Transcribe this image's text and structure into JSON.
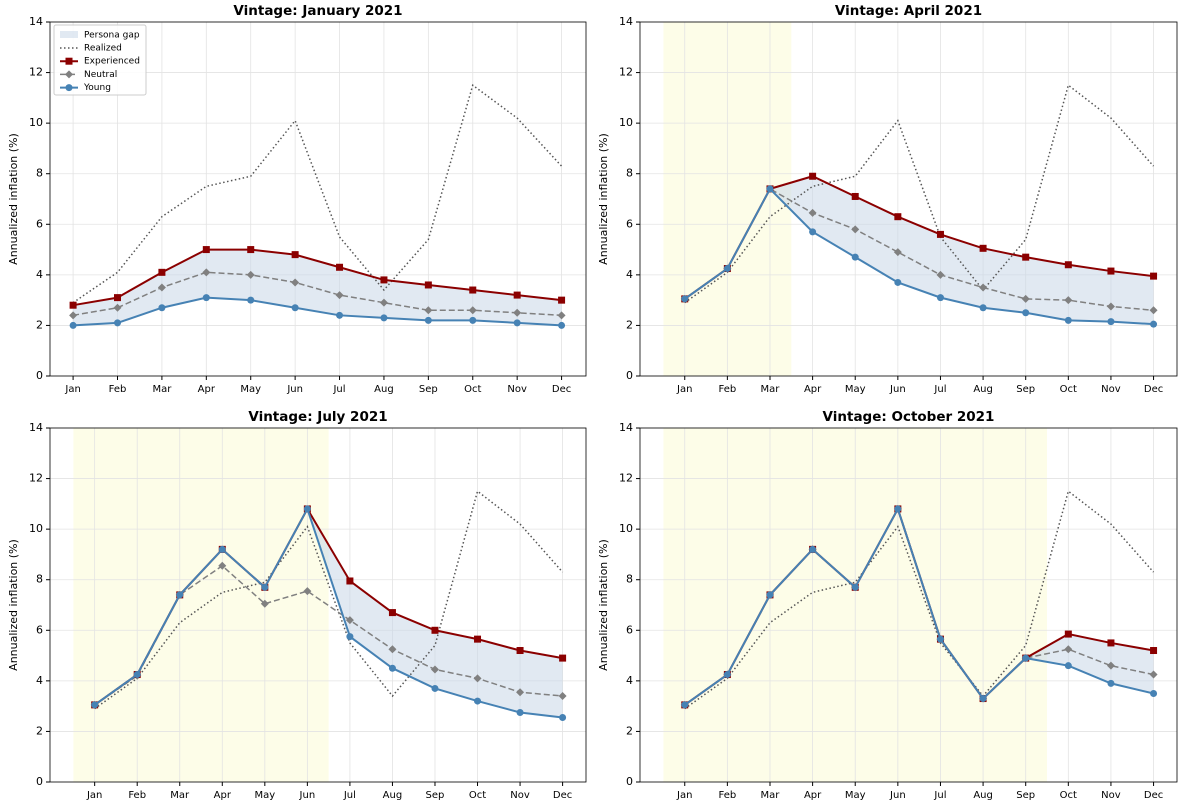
{
  "chart_data": [
    {
      "type": "line",
      "title": "Vintage: January 2021",
      "ylabel": "Annualized inflation (%)",
      "categories": [
        "Jan",
        "Feb",
        "Mar",
        "Apr",
        "May",
        "Jun",
        "Jul",
        "Aug",
        "Sep",
        "Oct",
        "Nov",
        "Dec"
      ],
      "ylim": [
        0,
        14
      ],
      "yticks": [
        0,
        2,
        4,
        6,
        8,
        10,
        12,
        14
      ],
      "grid": true,
      "legend": "upper left",
      "gap": {
        "name": "Persona gap",
        "color": "#c9d7e8"
      },
      "series": [
        {
          "name": "Realized",
          "color": "#555555",
          "style": "dotted",
          "marker": "none",
          "values": [
            2.9,
            4.1,
            6.3,
            7.5,
            7.9,
            10.1,
            5.5,
            3.4,
            5.4,
            11.5,
            10.2,
            8.3
          ]
        },
        {
          "name": "Experienced",
          "color": "#8b0000",
          "style": "solid",
          "marker": "square",
          "values": [
            2.8,
            3.1,
            4.1,
            5.0,
            5.0,
            4.8,
            4.3,
            3.8,
            3.6,
            3.4,
            3.2,
            3.0
          ]
        },
        {
          "name": "Neutral",
          "color": "#808080",
          "style": "dashed",
          "marker": "diamond",
          "values": [
            2.4,
            2.7,
            3.5,
            4.1,
            4.0,
            3.7,
            3.2,
            2.9,
            2.6,
            2.6,
            2.5,
            2.4
          ]
        },
        {
          "name": "Young",
          "color": "#4682b4",
          "style": "solid",
          "marker": "circle",
          "values": [
            2.0,
            2.1,
            2.7,
            3.1,
            3.0,
            2.7,
            2.4,
            2.3,
            2.2,
            2.2,
            2.1,
            2.0
          ]
        }
      ]
    },
    {
      "type": "line",
      "title": "Vintage: April 2021",
      "ylabel": "Annualized inflation (%)",
      "categories": [
        "Jan",
        "Feb",
        "Mar",
        "Apr",
        "May",
        "Jun",
        "Jul",
        "Aug",
        "Sep",
        "Oct",
        "Nov",
        "Dec"
      ],
      "ylim": [
        0,
        14
      ],
      "yticks": [
        0,
        2,
        4,
        6,
        8,
        10,
        12,
        14
      ],
      "grid": true,
      "shaded_through": 2,
      "series": [
        {
          "name": "Realized",
          "color": "#555555",
          "style": "dotted",
          "marker": "none",
          "values": [
            2.9,
            4.1,
            6.3,
            7.5,
            7.9,
            10.1,
            5.5,
            3.4,
            5.4,
            11.5,
            10.2,
            8.3
          ]
        },
        {
          "name": "Experienced",
          "color": "#8b0000",
          "style": "solid",
          "marker": "square",
          "values": [
            3.05,
            4.25,
            7.4,
            7.9,
            7.1,
            6.3,
            5.6,
            5.05,
            4.7,
            4.4,
            4.15,
            3.95
          ]
        },
        {
          "name": "Neutral",
          "color": "#808080",
          "style": "dashed",
          "marker": "diamond",
          "values": [
            3.05,
            4.25,
            7.4,
            6.45,
            5.8,
            4.9,
            4.0,
            3.5,
            3.05,
            3.0,
            2.75,
            2.6
          ]
        },
        {
          "name": "Young",
          "color": "#4682b4",
          "style": "solid",
          "marker": "circle",
          "values": [
            3.05,
            4.25,
            7.4,
            5.7,
            4.7,
            3.7,
            3.1,
            2.7,
            2.5,
            2.2,
            2.15,
            2.05
          ]
        }
      ]
    },
    {
      "type": "line",
      "title": "Vintage: July 2021",
      "ylabel": "Annualized inflation (%)",
      "categories": [
        "Jan",
        "Feb",
        "Mar",
        "Apr",
        "May",
        "Jun",
        "Jul",
        "Aug",
        "Sep",
        "Oct",
        "Nov",
        "Dec"
      ],
      "ylim": [
        0,
        14
      ],
      "yticks": [
        0,
        2,
        4,
        6,
        8,
        10,
        12,
        14
      ],
      "grid": true,
      "shaded_through": 5,
      "series": [
        {
          "name": "Realized",
          "color": "#555555",
          "style": "dotted",
          "marker": "none",
          "values": [
            2.9,
            4.1,
            6.3,
            7.5,
            7.9,
            10.1,
            5.5,
            3.4,
            5.4,
            11.5,
            10.2,
            8.3
          ]
        },
        {
          "name": "Experienced",
          "color": "#8b0000",
          "style": "solid",
          "marker": "square",
          "values": [
            3.05,
            4.25,
            7.4,
            9.2,
            7.7,
            10.8,
            7.95,
            6.7,
            6.0,
            5.65,
            5.2,
            4.9
          ]
        },
        {
          "name": "Neutral",
          "color": "#808080",
          "style": "dashed",
          "marker": "diamond",
          "values": [
            3.05,
            4.2,
            7.4,
            8.55,
            7.05,
            7.55,
            6.4,
            5.25,
            4.45,
            4.1,
            3.55,
            3.4
          ]
        },
        {
          "name": "Young",
          "color": "#4682b4",
          "style": "solid",
          "marker": "circle",
          "values": [
            3.05,
            4.25,
            7.4,
            9.2,
            7.7,
            10.8,
            5.75,
            4.5,
            3.7,
            3.2,
            2.75,
            2.55
          ]
        }
      ]
    },
    {
      "type": "line",
      "title": "Vintage: October 2021",
      "ylabel": "Annualized inflation (%)",
      "categories": [
        "Jan",
        "Feb",
        "Mar",
        "Apr",
        "May",
        "Jun",
        "Jul",
        "Aug",
        "Sep",
        "Oct",
        "Nov",
        "Dec"
      ],
      "ylim": [
        0,
        14
      ],
      "yticks": [
        0,
        2,
        4,
        6,
        8,
        10,
        12,
        14
      ],
      "grid": true,
      "shaded_through": 8,
      "series": [
        {
          "name": "Realized",
          "color": "#555555",
          "style": "dotted",
          "marker": "none",
          "values": [
            2.9,
            4.1,
            6.3,
            7.5,
            7.9,
            10.1,
            5.5,
            3.4,
            5.4,
            11.5,
            10.2,
            8.3
          ]
        },
        {
          "name": "Experienced",
          "color": "#8b0000",
          "style": "solid",
          "marker": "square",
          "values": [
            3.05,
            4.25,
            7.4,
            9.2,
            7.7,
            10.8,
            5.65,
            3.3,
            4.9,
            5.85,
            5.5,
            5.2
          ]
        },
        {
          "name": "Neutral",
          "color": "#808080",
          "style": "dashed",
          "marker": "diamond",
          "values": [
            3.05,
            4.25,
            7.4,
            9.2,
            7.7,
            10.8,
            5.65,
            3.3,
            4.9,
            5.25,
            4.6,
            4.25
          ]
        },
        {
          "name": "Young",
          "color": "#4682b4",
          "style": "solid",
          "marker": "circle",
          "values": [
            3.05,
            4.25,
            7.4,
            9.2,
            7.7,
            10.8,
            5.65,
            3.3,
            4.9,
            4.6,
            3.9,
            3.5
          ]
        }
      ]
    }
  ]
}
